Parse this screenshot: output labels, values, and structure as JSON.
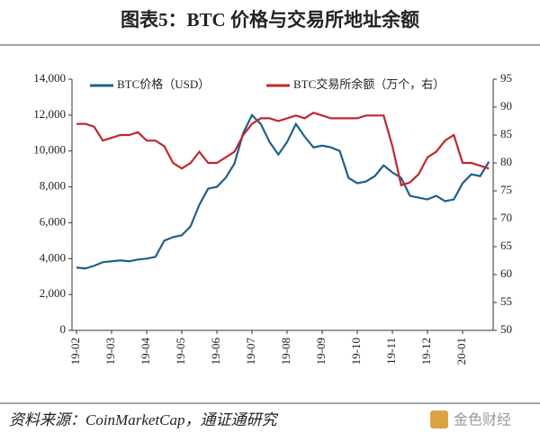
{
  "chart_data": {
    "type": "line",
    "title": "图表5：BTC 价格与交易所地址余额",
    "source": "资料来源：CoinMarketCap，通证通研究",
    "watermark": "金色财经",
    "categories": [
      "19-02",
      null,
      null,
      null,
      "19-03",
      null,
      null,
      null,
      "19-04",
      null,
      null,
      null,
      "19-05",
      null,
      null,
      null,
      "19-06",
      null,
      null,
      null,
      "19-07",
      null,
      null,
      null,
      "19-08",
      null,
      null,
      null,
      "19-09",
      null,
      null,
      null,
      "19-10",
      null,
      null,
      null,
      "19-11",
      null,
      null,
      null,
      "19-12",
      null,
      null,
      null,
      "20-01",
      null,
      null,
      null
    ],
    "series": [
      {
        "name": "BTC价格（USD）",
        "color": "#1f5f8b",
        "axis": "y",
        "values": [
          3500,
          3450,
          3600,
          3800,
          3850,
          3900,
          3850,
          3950,
          4000,
          4100,
          5000,
          5200,
          5300,
          5800,
          7000,
          7900,
          8000,
          8500,
          9300,
          11000,
          12000,
          11500,
          10500,
          9800,
          10500,
          11500,
          10800,
          10200,
          10300,
          10200,
          10000,
          8500,
          8200,
          8300,
          8600,
          9200,
          8800,
          8500,
          7500,
          7400,
          7300,
          7500,
          7200,
          7300,
          8200,
          8700,
          8600,
          9400
        ]
      },
      {
        "name": "BTC交易所余额（万个，右）",
        "color": "#c0282d",
        "axis": "y2",
        "values": [
          87,
          87,
          86.5,
          84,
          84.5,
          85,
          85,
          85.5,
          84,
          84,
          83,
          80,
          79,
          80,
          82,
          80,
          80,
          81,
          82,
          85,
          87,
          88,
          88,
          87.5,
          88,
          88.5,
          88,
          89,
          88.5,
          88,
          88,
          88,
          88,
          88.5,
          88.5,
          88.5,
          83,
          76,
          76.5,
          78,
          81,
          82,
          84,
          85,
          80,
          80,
          79.5,
          79
        ]
      }
    ],
    "ylim": [
      0,
      14000
    ],
    "yticks": [
      0,
      {
        "value": 2000,
        "label": "2,000"
      },
      {
        "value": 4000,
        "label": "4,000"
      },
      {
        "value": 6000,
        "label": "6,000"
      },
      {
        "value": 8000,
        "label": "8,000"
      },
      {
        "value": 10000,
        "label": "10,000"
      },
      {
        "value": 12000,
        "label": "12,000"
      },
      {
        "value": 14000,
        "label": "14,000"
      }
    ],
    "y2lim": [
      50,
      95
    ],
    "y2ticks": [
      50,
      55,
      60,
      65,
      70,
      75,
      80,
      85,
      90,
      95
    ],
    "legend": "top"
  }
}
